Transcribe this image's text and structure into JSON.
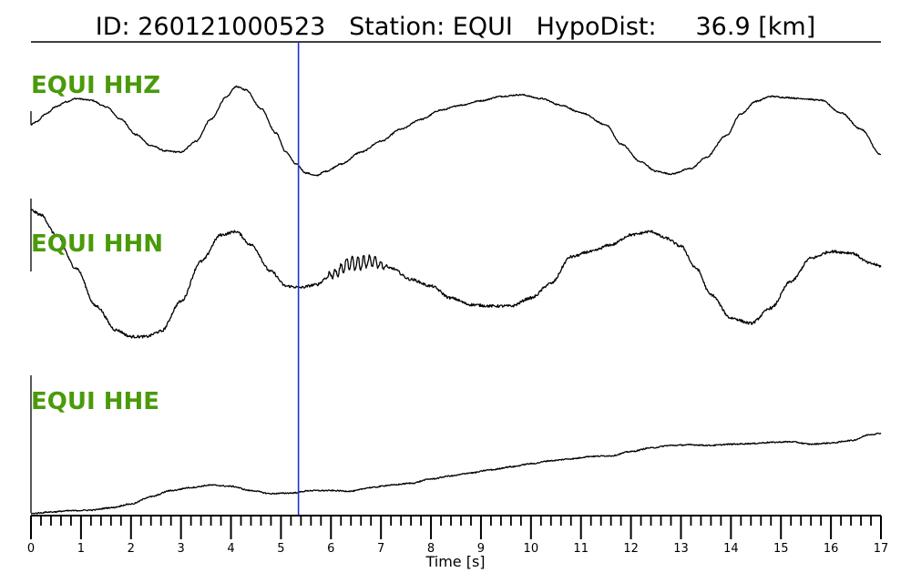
{
  "title": {
    "id_label": "ID:",
    "id_value": "260121000523",
    "station_label": "Station:",
    "station_value": "EQUI",
    "dist_label": "HypoDist:",
    "dist_value": "36.9",
    "dist_unit": "[km]"
  },
  "colors": {
    "trace_label": "#4a9a0a",
    "pick_line": "#1f2fd1",
    "trace": "#000000"
  },
  "chart_data": {
    "type": "line",
    "xlabel": "Time [s]",
    "xlim": [
      0,
      17
    ],
    "x_major_ticks": [
      0,
      1,
      2,
      3,
      4,
      5,
      6,
      7,
      8,
      9,
      10,
      11,
      12,
      13,
      14,
      15,
      16,
      17
    ],
    "x_minor_step": 0.2,
    "tick_labels": [
      "0",
      "1",
      "2",
      "3",
      "4",
      "5",
      "6",
      "7",
      "8",
      "9",
      "10",
      "11",
      "12",
      "13",
      "14",
      "15",
      "16",
      "17"
    ],
    "pick_time": 5.35,
    "grid": false,
    "normalized_amplitude": true,
    "series": [
      {
        "name": "EQUI HHZ",
        "noise": 0.012,
        "x": [
          0,
          0.1,
          0.3,
          0.5,
          0.7,
          0.9,
          1.2,
          1.5,
          1.8,
          2.1,
          2.4,
          2.7,
          3.0,
          3.3,
          3.6,
          3.9,
          4.1,
          4.3,
          4.6,
          4.9,
          5.1,
          5.3,
          5.5,
          5.7,
          5.9,
          6.2,
          6.6,
          7.0,
          7.4,
          7.8,
          8.2,
          8.6,
          9.0,
          9.4,
          9.8,
          10.2,
          10.6,
          11.0,
          11.5,
          11.8,
          12.2,
          12.5,
          12.8,
          13.2,
          13.5,
          13.9,
          14.2,
          14.5,
          14.8,
          15.1,
          15.4,
          15.8,
          16.2,
          16.6,
          17.0
        ],
        "y": [
          0.0,
          0.05,
          0.2,
          0.33,
          0.42,
          0.48,
          0.45,
          0.33,
          0.1,
          -0.18,
          -0.38,
          -0.48,
          -0.5,
          -0.3,
          0.1,
          0.5,
          0.7,
          0.64,
          0.3,
          -0.15,
          -0.5,
          -0.72,
          -0.88,
          -0.93,
          -0.85,
          -0.72,
          -0.5,
          -0.3,
          -0.08,
          0.1,
          0.27,
          0.36,
          0.44,
          0.52,
          0.55,
          0.48,
          0.36,
          0.22,
          0.0,
          -0.35,
          -0.68,
          -0.85,
          -0.9,
          -0.8,
          -0.6,
          -0.2,
          0.2,
          0.43,
          0.52,
          0.5,
          0.48,
          0.45,
          0.22,
          -0.08,
          -0.55
        ]
      },
      {
        "name": "EQUI HHN",
        "noise": 0.02,
        "burst": [
          5.8,
          7.2,
          0.11
        ],
        "x": [
          0,
          0.2,
          0.5,
          0.9,
          1.3,
          1.7,
          2.0,
          2.3,
          2.6,
          3.0,
          3.4,
          3.8,
          4.1,
          4.4,
          4.8,
          5.1,
          5.4,
          5.7,
          6.0,
          6.4,
          6.8,
          7.2,
          7.6,
          8.0,
          8.4,
          8.8,
          9.2,
          9.6,
          10.0,
          10.4,
          10.8,
          11.2,
          11.6,
          12.0,
          12.4,
          12.7,
          13.0,
          13.3,
          13.6,
          14.0,
          14.4,
          14.8,
          15.2,
          15.6,
          16.0,
          16.4,
          16.8,
          17.0
        ],
        "y": [
          0.92,
          0.85,
          0.55,
          0.05,
          -0.52,
          -0.88,
          -0.98,
          -0.98,
          -0.9,
          -0.45,
          0.15,
          0.55,
          0.6,
          0.4,
          0.0,
          -0.22,
          -0.24,
          -0.2,
          -0.05,
          0.12,
          0.15,
          0.05,
          -0.12,
          -0.22,
          -0.4,
          -0.5,
          -0.52,
          -0.52,
          -0.4,
          -0.18,
          0.22,
          0.3,
          0.4,
          0.55,
          0.6,
          0.5,
          0.38,
          0.05,
          -0.35,
          -0.7,
          -0.78,
          -0.55,
          -0.15,
          0.2,
          0.3,
          0.28,
          0.12,
          0.08
        ]
      },
      {
        "name": "EQUI HHE",
        "noise": 0.01,
        "x": [
          0,
          0.1,
          0.4,
          0.8,
          1.2,
          1.6,
          2.0,
          2.4,
          2.8,
          3.2,
          3.6,
          4.0,
          4.4,
          4.8,
          5.2,
          5.6,
          6.0,
          6.4,
          6.8,
          7.2,
          7.6,
          8.0,
          8.4,
          8.8,
          9.2,
          9.6,
          10.0,
          10.4,
          10.8,
          11.2,
          11.6,
          12.0,
          12.4,
          12.8,
          13.2,
          13.6,
          14.0,
          14.4,
          14.8,
          15.2,
          15.6,
          16.0,
          16.4,
          16.8,
          17.0
        ],
        "y": [
          -1.0,
          -0.99,
          -0.97,
          -0.95,
          -0.94,
          -0.9,
          -0.84,
          -0.72,
          -0.62,
          -0.57,
          -0.53,
          -0.55,
          -0.62,
          -0.67,
          -0.66,
          -0.62,
          -0.62,
          -0.63,
          -0.57,
          -0.53,
          -0.5,
          -0.43,
          -0.38,
          -0.33,
          -0.28,
          -0.23,
          -0.18,
          -0.13,
          -0.1,
          -0.06,
          -0.05,
          0.02,
          0.08,
          0.12,
          0.13,
          0.12,
          0.14,
          0.15,
          0.17,
          0.18,
          0.14,
          0.16,
          0.2,
          0.3,
          0.32
        ]
      }
    ]
  }
}
